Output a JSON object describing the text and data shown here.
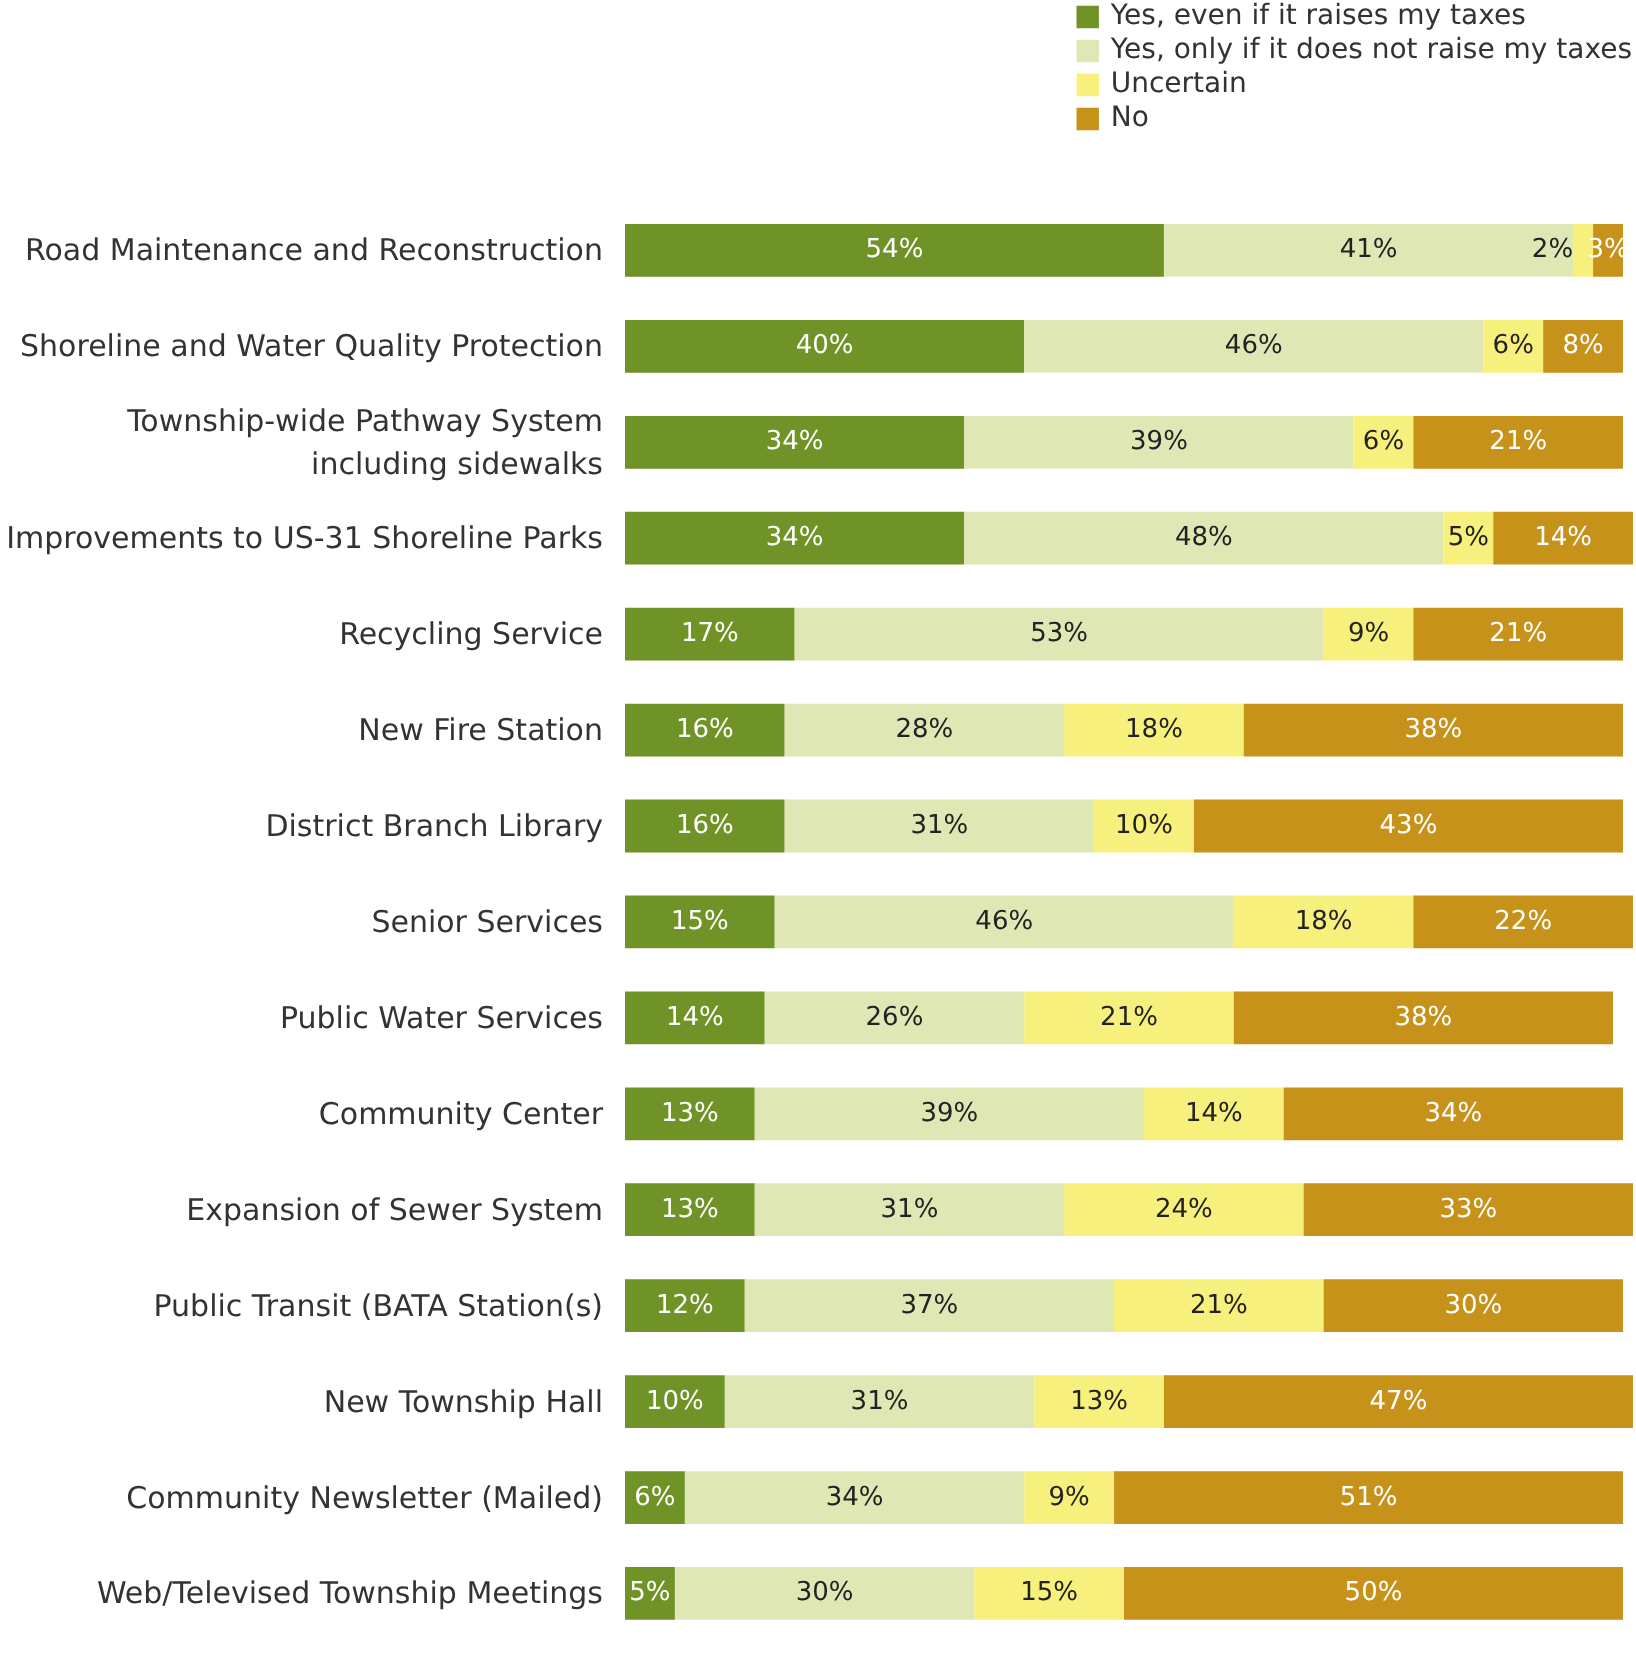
{
  "chart_data": {
    "type": "bar",
    "orientation": "horizontal",
    "stacked": true,
    "legend": "top right",
    "grid": false,
    "categories": [
      "Road Maintenance and Reconstruction",
      "Shoreline and Water Quality Protection",
      "Township-wide Pathway System\nincluding sidewalks",
      "Improvements to US-31 Shoreline Parks",
      "Recycling Service",
      "New Fire Station",
      "District Branch Library",
      "Senior Services",
      "Public Water Services",
      "Community Center",
      "Expansion of Sewer System",
      "Public Transit (BATA Station(s)",
      "New Township Hall",
      "Community Newsletter (Mailed)",
      "Web/Televised Township Meetings"
    ],
    "series": [
      {
        "name": "Yes, even if it raises my taxes",
        "color": "#6f9326",
        "values": [
          54,
          40,
          34,
          34,
          17,
          16,
          16,
          15,
          14,
          13,
          13,
          12,
          10,
          6,
          5
        ],
        "value_labels": [
          "54%",
          "40%",
          "34%",
          "34%",
          "17%",
          "16%",
          "16%",
          "15%",
          "14%",
          "13%",
          "13%",
          "12%",
          "10%",
          "6%",
          "5%"
        ]
      },
      {
        "name": "Yes, only if it does not raise my taxes",
        "color": "#dfe8b4",
        "values": [
          41,
          46,
          39,
          48,
          53,
          28,
          31,
          46,
          26,
          39,
          31,
          37,
          31,
          34,
          30
        ],
        "value_labels": [
          "41%",
          "46%",
          "39%",
          "48%",
          "53%",
          "28%",
          "31%",
          "46%",
          "26%",
          "39%",
          "31%",
          "37%",
          "31%",
          "34%",
          "30%"
        ]
      },
      {
        "name": "Uncertain",
        "color": "#f8f07c",
        "values": [
          2,
          6,
          6,
          5,
          9,
          18,
          10,
          18,
          21,
          14,
          24,
          21,
          13,
          9,
          15
        ],
        "value_labels": [
          "2%",
          "6%",
          "6%",
          "5%",
          "9%",
          "18%",
          "10%",
          "18%",
          "21%",
          "14%",
          "24%",
          "21%",
          "13%",
          "9%",
          "15%"
        ]
      },
      {
        "name": "No",
        "color": "#c6921a",
        "values": [
          3,
          8,
          21,
          14,
          21,
          38,
          43,
          22,
          38,
          34,
          33,
          30,
          47,
          51,
          50
        ],
        "value_labels": [
          "3%",
          "8%",
          "21%",
          "14%",
          "21%",
          "38%",
          "43%",
          "22%",
          "38%",
          "34%",
          "33%",
          "30%",
          "47%",
          "51%",
          "50%"
        ]
      }
    ]
  }
}
